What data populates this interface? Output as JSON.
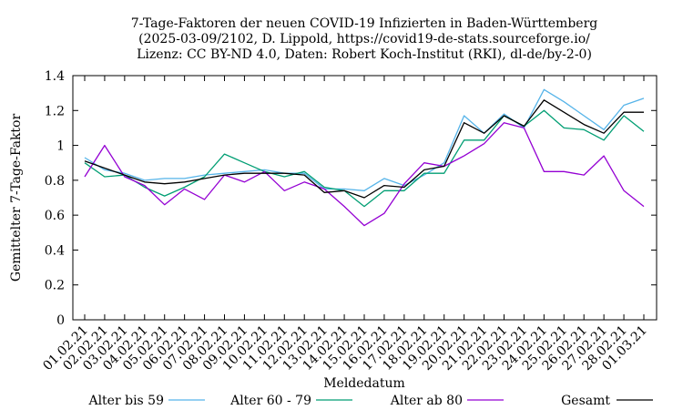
{
  "chart_data": {
    "type": "line",
    "title_lines": [
      "7-Tage-Faktoren der neuen COVID-19 Infizierten in Baden-Württemberg",
      "(2025-03-09/2102, D. Lippold, https://covid19-de-stats.sourceforge.io/",
      "Lizenz: CC BY-ND 4.0, Daten: Robert Koch-Institut (RKI), dl-de/by-2-0)"
    ],
    "xlabel": "Meldedatum",
    "ylabel": "Gemittelter 7-Tage-Faktor",
    "ylim": [
      0,
      1.4
    ],
    "yticks": [
      "0",
      "0.2",
      "0.4",
      "0.6",
      "0.8",
      "1",
      "1.2",
      "1.4"
    ],
    "categories": [
      "01.02.21",
      "02.02.21",
      "03.02.21",
      "04.02.21",
      "05.02.21",
      "06.02.21",
      "07.02.21",
      "08.02.21",
      "09.02.21",
      "10.02.21",
      "11.02.21",
      "12.02.21",
      "13.02.21",
      "14.02.21",
      "15.02.21",
      "16.02.21",
      "17.02.21",
      "18.02.21",
      "19.02.21",
      "20.02.21",
      "21.02.21",
      "22.02.21",
      "23.02.21",
      "24.02.21",
      "25.02.21",
      "26.02.21",
      "27.02.21",
      "28.02.21",
      "01.03.21"
    ],
    "grid": false,
    "legend_position": "bottom",
    "series": [
      {
        "name": "Alter bis 59",
        "color": "#56b4e9",
        "values": [
          0.93,
          0.86,
          0.84,
          0.8,
          0.81,
          0.81,
          0.83,
          0.84,
          0.85,
          0.86,
          0.84,
          0.84,
          0.75,
          0.75,
          0.74,
          0.81,
          0.77,
          0.83,
          0.9,
          1.17,
          1.07,
          1.18,
          1.1,
          1.32,
          1.25,
          1.17,
          1.09,
          1.23,
          1.27
        ]
      },
      {
        "name": "Alter 60 - 79",
        "color": "#009e73",
        "values": [
          0.9,
          0.82,
          0.83,
          0.76,
          0.71,
          0.76,
          0.82,
          0.95,
          0.9,
          0.85,
          0.82,
          0.85,
          0.76,
          0.74,
          0.65,
          0.74,
          0.74,
          0.84,
          0.84,
          1.03,
          1.03,
          1.17,
          1.11,
          1.2,
          1.1,
          1.09,
          1.03,
          1.17,
          1.08
        ]
      },
      {
        "name": "Alter ab 80",
        "color": "#9400d3",
        "values": [
          0.82,
          1.0,
          0.82,
          0.77,
          0.66,
          0.75,
          0.69,
          0.83,
          0.79,
          0.85,
          0.74,
          0.79,
          0.75,
          0.65,
          0.54,
          0.61,
          0.78,
          0.9,
          0.88,
          0.94,
          1.01,
          1.13,
          1.1,
          0.85,
          0.85,
          0.83,
          0.94,
          0.74,
          0.65
        ]
      },
      {
        "name": "Gesamt",
        "color": "#000000",
        "values": [
          0.91,
          0.87,
          0.83,
          0.79,
          0.78,
          0.79,
          0.81,
          0.83,
          0.84,
          0.84,
          0.84,
          0.83,
          0.73,
          0.74,
          0.7,
          0.77,
          0.76,
          0.86,
          0.88,
          1.13,
          1.07,
          1.17,
          1.11,
          1.26,
          1.19,
          1.12,
          1.07,
          1.19,
          1.19
        ]
      }
    ]
  }
}
